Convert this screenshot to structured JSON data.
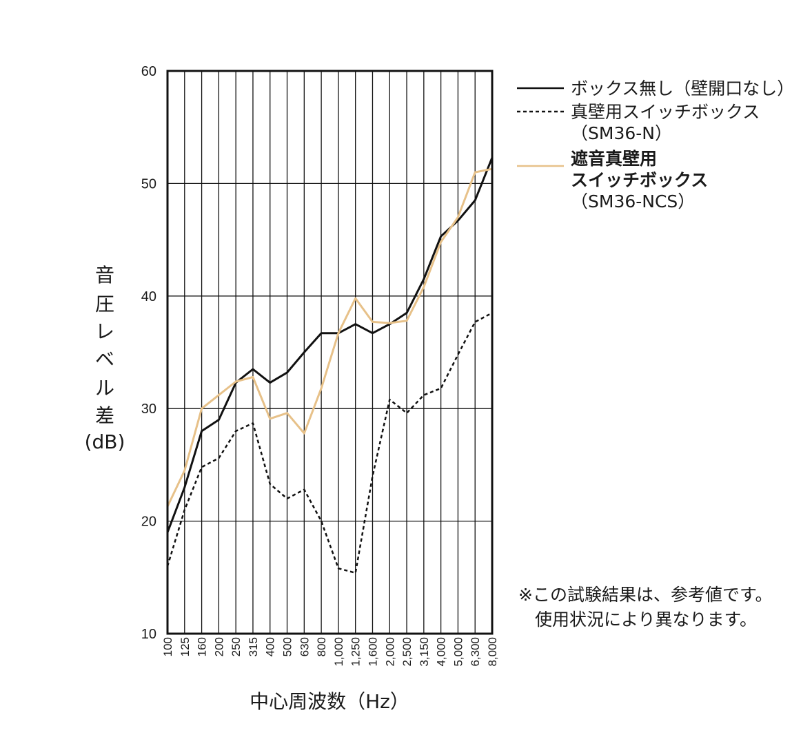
{
  "chart_data": {
    "type": "line",
    "title": "",
    "xlabel": "中心周波数（Hz）",
    "ylabel_lines": [
      "音",
      "圧",
      "レ",
      "ベ",
      "ル",
      "差",
      "(dB)"
    ],
    "ylim": [
      10,
      60
    ],
    "yticks": [
      "10",
      "20",
      "30",
      "40",
      "50",
      "60"
    ],
    "grid": true,
    "categories": [
      "100",
      "125",
      "160",
      "200",
      "250",
      "315",
      "400",
      "500",
      "630",
      "800",
      "1,000",
      "1,250",
      "1,600",
      "2,000",
      "2,500",
      "3,150",
      "4,000",
      "5,000",
      "6,300",
      "8,000"
    ],
    "series": [
      {
        "name_lines": [
          "ボックス無し（壁開口なし）"
        ],
        "bold": false,
        "color": "#111111",
        "style": "solid",
        "values": [
          19.0,
          23.0,
          28.0,
          29.0,
          32.3,
          33.5,
          32.3,
          33.2,
          35.0,
          36.7,
          36.7,
          37.5,
          36.7,
          37.5,
          38.5,
          41.5,
          45.3,
          46.7,
          48.5,
          52.3
        ]
      },
      {
        "name_lines": [
          "真壁用スイッチボックス",
          "（SM36-N）"
        ],
        "bold": false,
        "color": "#111111",
        "style": "dotted",
        "values": [
          16.0,
          21.0,
          24.8,
          25.6,
          28.0,
          28.7,
          23.3,
          22.0,
          22.8,
          20.0,
          15.8,
          15.4,
          24.0,
          30.8,
          29.6,
          31.2,
          31.8,
          34.8,
          37.7,
          38.5
        ]
      },
      {
        "name_lines": [
          "遮音真壁用",
          "スイッチボックス",
          "（SM36-NCS）"
        ],
        "bold": true,
        "color": "#e7c189",
        "style": "solid",
        "values": [
          21.3,
          24.5,
          30.0,
          31.2,
          32.4,
          32.8,
          29.1,
          29.6,
          27.8,
          31.8,
          36.7,
          39.8,
          37.7,
          37.6,
          37.8,
          40.8,
          44.8,
          47.0,
          51.0,
          51.3
        ]
      }
    ]
  },
  "note": {
    "line1": "※この試験結果は、参考値です。",
    "line2": "使用状況により異なります。"
  }
}
